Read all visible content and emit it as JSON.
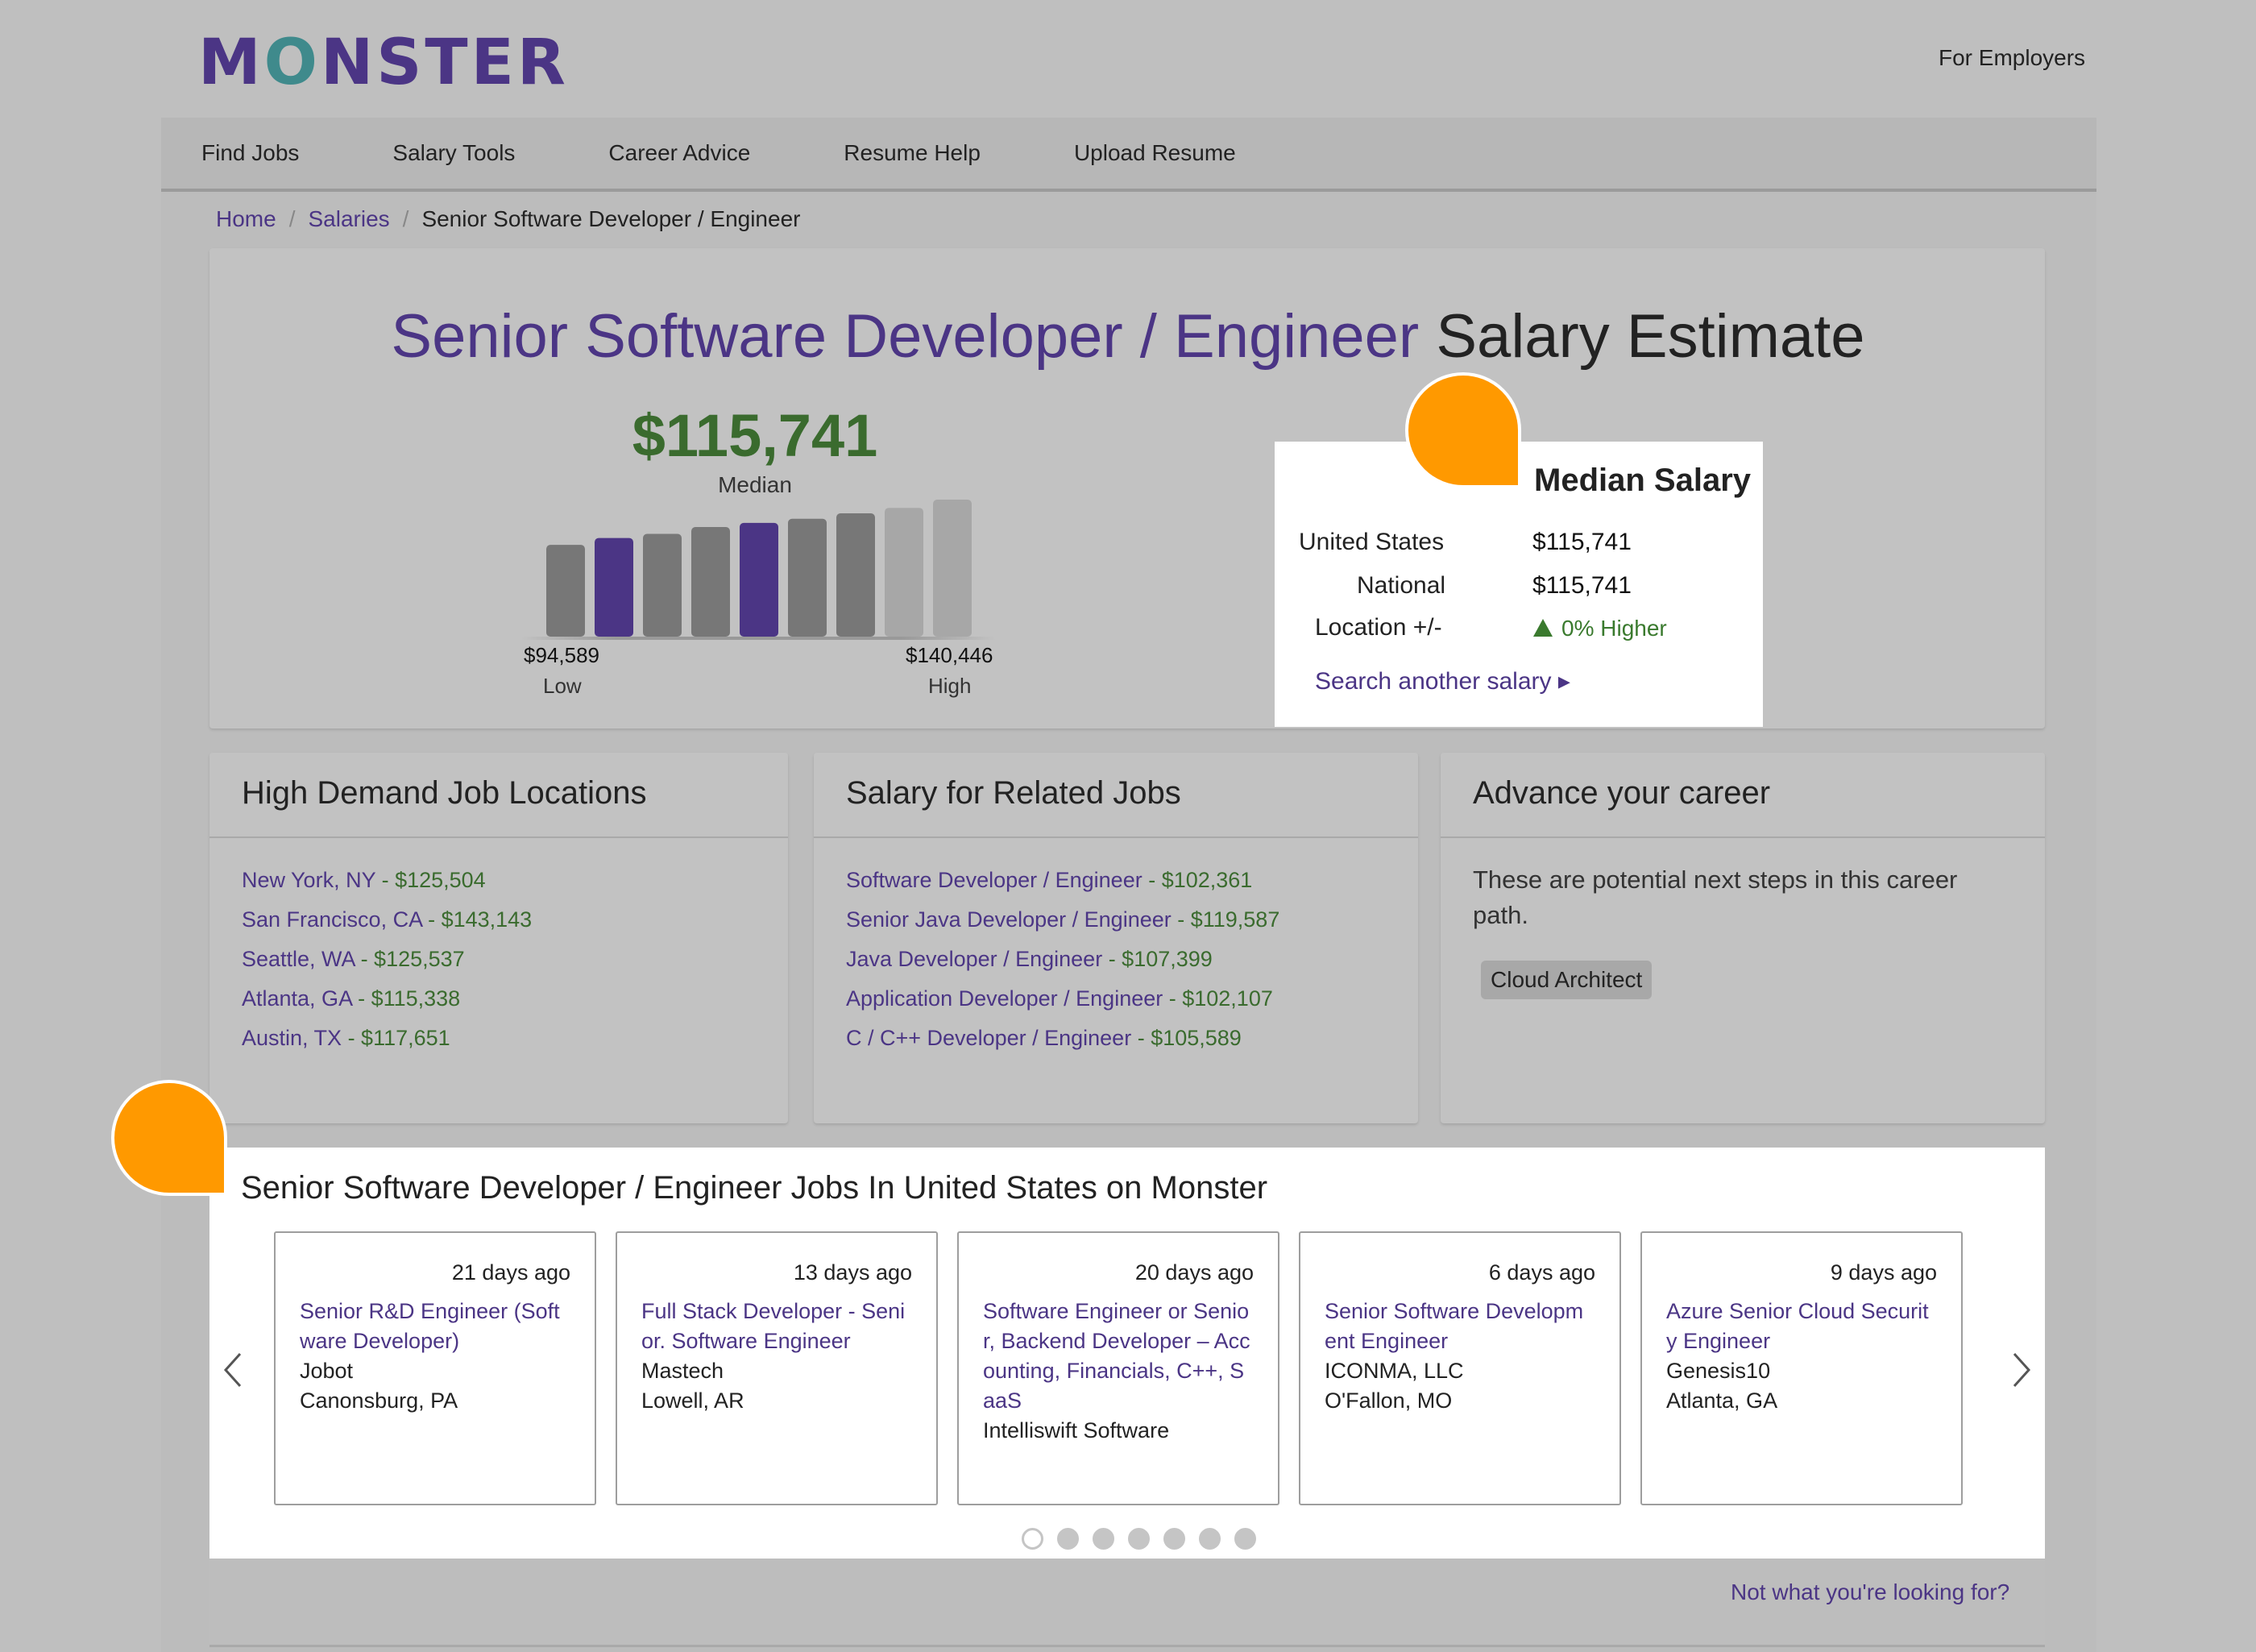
{
  "header": {
    "logo": {
      "pre": "M",
      "o": "O",
      "post": "NSTER"
    },
    "for_employers": "For Employers"
  },
  "nav": [
    "Find Jobs",
    "Salary Tools",
    "Career Advice",
    "Resume Help",
    "Upload Resume"
  ],
  "breadcrumb": {
    "home": "Home",
    "salaries": "Salaries",
    "current": "Senior Software Developer / Engineer",
    "sep": "/"
  },
  "hero": {
    "role": "Senior Software Developer / Engineer",
    "suffix": " Salary Estimate",
    "median_amount": "$115,741",
    "median_label": "Median",
    "low_value": "$94,589",
    "low_label": "Low",
    "high_value": "$140,446",
    "high_label": "High",
    "bars": [
      {
        "level": 0.67,
        "highlight": false
      },
      {
        "level": 0.72,
        "highlight": true
      },
      {
        "level": 0.75,
        "highlight": false
      },
      {
        "level": 0.8,
        "highlight": false
      },
      {
        "level": 0.83,
        "highlight": true
      },
      {
        "level": 0.86,
        "highlight": false
      },
      {
        "level": 0.9,
        "highlight": false
      },
      {
        "level": 0.94,
        "highlight": false,
        "light": true
      },
      {
        "level": 1.0,
        "highlight": false,
        "light": true
      }
    ]
  },
  "median_box": {
    "title": "Median Salary",
    "rows": [
      {
        "label": "United States",
        "value": "$115,741"
      },
      {
        "label": "National",
        "value": "$115,741"
      },
      {
        "label": "Location +/-",
        "value": "0% Higher"
      }
    ],
    "search_link": "Search another salary ▸"
  },
  "locations": {
    "title": "High Demand Job Locations",
    "items": [
      {
        "place": "New York, NY",
        "salary": " - $125,504"
      },
      {
        "place": "San Francisco, CA",
        "salary": " - $143,143"
      },
      {
        "place": "Seattle, WA",
        "salary": " - $125,537"
      },
      {
        "place": "Atlanta, GA",
        "salary": " - $115,338"
      },
      {
        "place": "Austin, TX",
        "salary": " - $117,651"
      }
    ]
  },
  "related": {
    "title": "Salary for Related Jobs",
    "items": [
      {
        "job": "Software Developer / Engineer",
        "salary": " - $102,361"
      },
      {
        "job": "Senior Java Developer / Engineer",
        "salary": " - $119,587"
      },
      {
        "job": "Java Developer / Engineer",
        "salary": " - $107,399"
      },
      {
        "job": "Application Developer / Engineer",
        "salary": " - $102,107"
      },
      {
        "job": "C / C++ Developer / Engineer",
        "salary": " - $105,589"
      }
    ]
  },
  "advance": {
    "title": "Advance your career",
    "text": "These are potential next steps in this career path.",
    "chip": "Cloud Architect"
  },
  "jobs": {
    "title": "Senior Software Developer / Engineer Jobs In United States on Monster",
    "cards": [
      {
        "age": "21 days ago",
        "title": "Senior R&D Engineer (Software Developer)",
        "company": "Jobot",
        "location": "Canonsburg, PA"
      },
      {
        "age": "13 days ago",
        "title": "Full Stack Developer - Senior. Software Engineer",
        "company": "Mastech",
        "location": "Lowell, AR"
      },
      {
        "age": "20 days ago",
        "title": "Software Engineer or Senior, Backend Developer – Accounting, Financials, C++, SaaS",
        "company": "Intelliswift Software",
        "location": ""
      },
      {
        "age": "6 days ago",
        "title": "Senior Software Development Engineer",
        "company": "ICONMA, LLC",
        "location": "O'Fallon, MO"
      },
      {
        "age": "9 days ago",
        "title": "Azure Senior Cloud Security Engineer",
        "company": "Genesis10",
        "location": "Atlanta, GA"
      }
    ],
    "dots": 7,
    "active_dot": 0,
    "not_looking": "Not what you're looking for?"
  },
  "colors": {
    "brand": "#4b3585",
    "salary_green": "#3a6b2e",
    "bubble": "#ff9900"
  }
}
